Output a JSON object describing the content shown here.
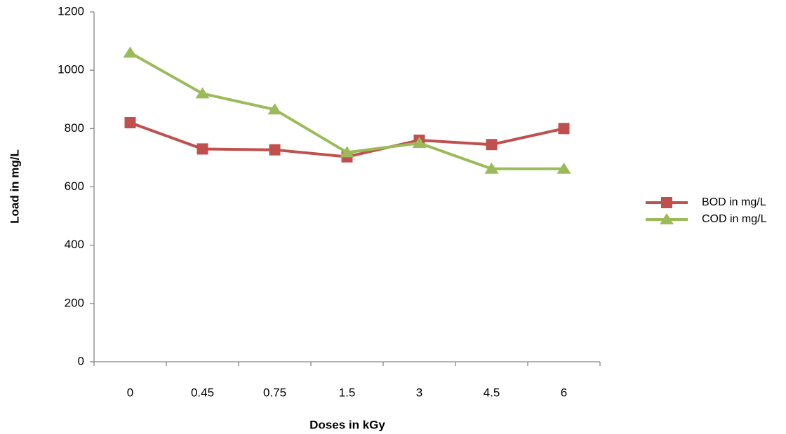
{
  "chart_data": {
    "type": "line",
    "xlabel": "Doses in kGy",
    "ylabel": "Load in mg/L",
    "categories": [
      "0",
      "0.45",
      "0.75",
      "1.5",
      "3",
      "4.5",
      "6"
    ],
    "series": [
      {
        "name": "BOD in mg/L",
        "color": "#c0504d",
        "marker": "square",
        "values": [
          820,
          730,
          727,
          703,
          760,
          745,
          800
        ]
      },
      {
        "name": "COD in mg/L",
        "color": "#9bbb59",
        "marker": "triangle",
        "values": [
          1060,
          920,
          865,
          718,
          750,
          662,
          662
        ]
      }
    ],
    "ylim": [
      0,
      1200
    ],
    "yticks": [
      0,
      200,
      400,
      600,
      800,
      1000,
      1200
    ],
    "grid": false,
    "legend": "right"
  }
}
